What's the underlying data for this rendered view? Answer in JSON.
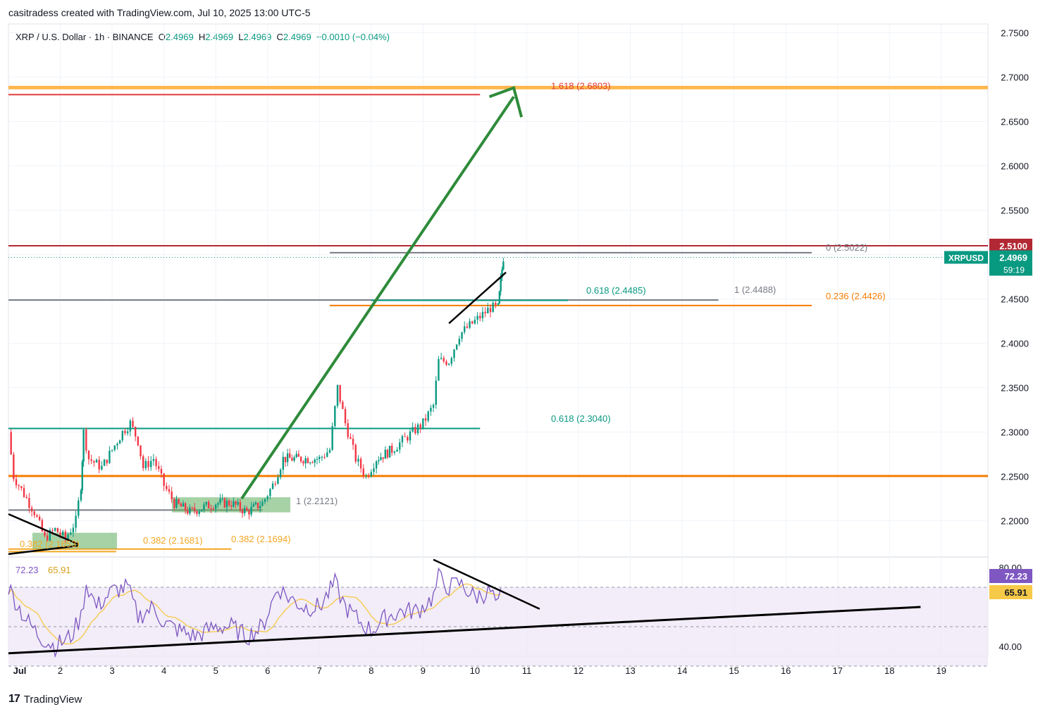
{
  "header": {
    "credit": "casitradess created with TradingView.com, Jul 10, 2025 13:00 UTC-5",
    "symbol_desc": "XRP / U.S. Dollar · 1h · BINANCE",
    "o_label": "O",
    "o_value": "2.4969",
    "h_label": "H",
    "h_value": "2.4969",
    "l_label": "L",
    "l_value": "2.4969",
    "c_label": "C",
    "c_value": "2.4969",
    "change": "−0.0010 (−0.04%)"
  },
  "footer": {
    "brand": "TradingView",
    "logo_mark": "17"
  },
  "colors": {
    "up": "#089981",
    "down": "#f23645",
    "bg": "#ffffff",
    "grid": "#f0f3fa",
    "fib_red": "#e03a3a",
    "orange": "#f57c00",
    "gold": "#ffb74d",
    "teal": "#089981",
    "gray": "#787b86",
    "arrow": "#2e8b3a",
    "box_green": "#5cad5c",
    "rsi_line": "#7e57c2",
    "rsi_ma": "#f7c948",
    "rsi_band": "#ede7f6",
    "dark_red": "#b22833"
  },
  "chart_data": [
    {
      "type": "candlestick",
      "title": "XRP / U.S. Dollar · 1h · BINANCE",
      "ylim": [
        2.16,
        2.76
      ],
      "y_ticks": [
        "2.7500",
        "2.7000",
        "2.6500",
        "2.6000",
        "2.5500",
        "2.5000",
        "2.4500",
        "2.4000",
        "2.3500",
        "2.3000",
        "2.2500",
        "2.2000"
      ],
      "x_ticks": [
        "Jul",
        "2",
        "3",
        "4",
        "5",
        "6",
        "7",
        "8",
        "9",
        "10",
        "11",
        "12",
        "13",
        "14",
        "15",
        "16",
        "17",
        "18",
        "19"
      ],
      "x_range_days": [
        1,
        19.9
      ],
      "last_price": 2.4969,
      "price_labels": [
        {
          "name": "2.5100",
          "value": 2.51,
          "color": "#b22833"
        },
        {
          "name": "XRPUSD",
          "value": 2.4969,
          "price": "2.4969",
          "timer": "59:19",
          "color": "#089981"
        }
      ],
      "price_path": [
        [
          1.0,
          2.3
        ],
        [
          1.1,
          2.25
        ],
        [
          1.3,
          2.23
        ],
        [
          1.5,
          2.21
        ],
        [
          1.7,
          2.18
        ],
        [
          1.9,
          2.19
        ],
        [
          2.1,
          2.18
        ],
        [
          2.3,
          2.2
        ],
        [
          2.4,
          2.24
        ],
        [
          2.45,
          2.3
        ],
        [
          2.55,
          2.27
        ],
        [
          2.8,
          2.26
        ],
        [
          3.0,
          2.28
        ],
        [
          3.2,
          2.3
        ],
        [
          3.35,
          2.31
        ],
        [
          3.5,
          2.29
        ],
        [
          3.6,
          2.26
        ],
        [
          3.8,
          2.27
        ],
        [
          4.0,
          2.24
        ],
        [
          4.2,
          2.22
        ],
        [
          4.5,
          2.21
        ],
        [
          5.0,
          2.22
        ],
        [
          5.3,
          2.22
        ],
        [
          5.6,
          2.21
        ],
        [
          5.9,
          2.22
        ],
        [
          6.1,
          2.24
        ],
        [
          6.3,
          2.27
        ],
        [
          6.6,
          2.27
        ],
        [
          7.0,
          2.27
        ],
        [
          7.2,
          2.28
        ],
        [
          7.35,
          2.35
        ],
        [
          7.5,
          2.31
        ],
        [
          7.7,
          2.27
        ],
        [
          7.9,
          2.25
        ],
        [
          8.1,
          2.27
        ],
        [
          8.4,
          2.28
        ],
        [
          8.6,
          2.29
        ],
        [
          8.8,
          2.3
        ],
        [
          9.0,
          2.31
        ],
        [
          9.2,
          2.33
        ],
        [
          9.3,
          2.38
        ],
        [
          9.5,
          2.38
        ],
        [
          9.7,
          2.41
        ],
        [
          9.9,
          2.42
        ],
        [
          10.1,
          2.43
        ],
        [
          10.3,
          2.44
        ],
        [
          10.45,
          2.44
        ],
        [
          10.5,
          2.47
        ],
        [
          10.55,
          2.497
        ]
      ],
      "annotations": [
        {
          "text": "1.618 (2.6803)",
          "color": "#e03a3a"
        },
        {
          "text": "0 (2.5022)",
          "color": "#787b86"
        },
        {
          "text": "0.618 (2.4485)",
          "color": "#089981"
        },
        {
          "text": "1 (2.4488)",
          "color": "#787b86"
        },
        {
          "text": "0.236 (2.4426)",
          "color": "#f57c00"
        },
        {
          "text": "0.618 (2.3040)",
          "color": "#089981"
        },
        {
          "text": "1 (2.2121)",
          "color": "#787b86"
        },
        {
          "text": "0.382 (2.1681)",
          "color": "#f5a623"
        },
        {
          "text": "0.382 (2.1694)",
          "color": "#f5a623"
        },
        {
          "text": "0.382 (2.1653)",
          "color": "#f5a623"
        }
      ],
      "levels": [
        {
          "value": 2.6883,
          "color": "#ffb74d",
          "from_day": 1.0,
          "to_day": 19.9
        },
        {
          "value": 2.6803,
          "color": "#e03a3a",
          "from_day": 1.0,
          "to_day": 10.1
        },
        {
          "value": 2.51,
          "color": "#b22833",
          "from_day": 1.0,
          "to_day": 19.9
        },
        {
          "value": 2.5022,
          "color": "#787b86",
          "from_day": 7.2,
          "to_day": 16.5
        },
        {
          "value": 2.4488,
          "color": "#787b86",
          "from_day": 1.0,
          "to_day": 14.7
        },
        {
          "value": 2.4485,
          "color": "#089981",
          "from_day": 8.0,
          "to_day": 11.8
        },
        {
          "value": 2.4426,
          "color": "#f57c00",
          "from_day": 7.2,
          "to_day": 16.5
        },
        {
          "value": 2.304,
          "color": "#089981",
          "from_day": 1.0,
          "to_day": 10.1
        },
        {
          "value": 2.2505,
          "color": "#f57c00",
          "from_day": 1.0,
          "to_day": 19.9
        },
        {
          "value": 2.2121,
          "color": "#787b86",
          "from_day": 1.0,
          "to_day": 5.9
        },
        {
          "value": 2.1681,
          "color": "#f5a623",
          "from_day": 1.0,
          "to_day": 5.3
        }
      ]
    },
    {
      "type": "line",
      "title": "",
      "ylim": [
        35,
        85
      ],
      "y_ticks": [
        "80.00",
        "40.00"
      ],
      "series": [
        {
          "name": "72.23",
          "value": 72.23,
          "color": "#7e57c2"
        },
        {
          "name": "65.91",
          "value": 65.91,
          "color": "#f7c948"
        }
      ],
      "bands": [
        70,
        50,
        30
      ],
      "rsi_path": [
        [
          1.0,
          70
        ],
        [
          1.3,
          55
        ],
        [
          1.6,
          45
        ],
        [
          1.9,
          40
        ],
        [
          2.2,
          45
        ],
        [
          2.4,
          55
        ],
        [
          2.5,
          72
        ],
        [
          2.7,
          60
        ],
        [
          3.0,
          68
        ],
        [
          3.3,
          70
        ],
        [
          3.5,
          55
        ],
        [
          3.8,
          60
        ],
        [
          4.0,
          52
        ],
        [
          4.3,
          48
        ],
        [
          4.6,
          45
        ],
        [
          5.0,
          50
        ],
        [
          5.3,
          50
        ],
        [
          5.6,
          45
        ],
        [
          5.9,
          50
        ],
        [
          6.2,
          70
        ],
        [
          6.4,
          65
        ],
        [
          6.7,
          60
        ],
        [
          7.0,
          60
        ],
        [
          7.3,
          72
        ],
        [
          7.5,
          60
        ],
        [
          7.8,
          52
        ],
        [
          8.0,
          48
        ],
        [
          8.3,
          55
        ],
        [
          8.6,
          58
        ],
        [
          8.9,
          58
        ],
        [
          9.2,
          65
        ],
        [
          9.3,
          75
        ],
        [
          9.5,
          70
        ],
        [
          9.7,
          72
        ],
        [
          10.0,
          65
        ],
        [
          10.3,
          68
        ],
        [
          10.45,
          60
        ],
        [
          10.55,
          72
        ]
      ]
    }
  ]
}
